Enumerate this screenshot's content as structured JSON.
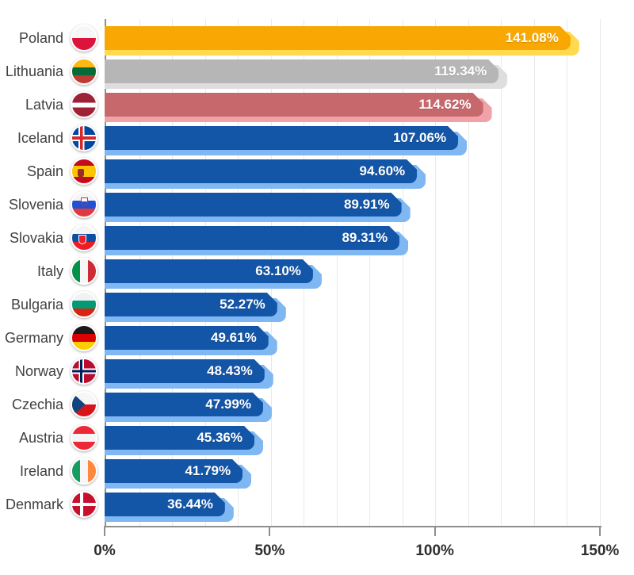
{
  "chart_data": {
    "type": "bar",
    "orientation": "horizontal",
    "title": "",
    "xlabel": "",
    "ylabel": "",
    "xlim": [
      0,
      150
    ],
    "x_tick_labels": [
      "0%",
      "50%",
      "100%",
      "150%"
    ],
    "x_tick_values": [
      0,
      50,
      100,
      150
    ],
    "gridline_step": 10,
    "grid": true,
    "legend": false,
    "categories": [
      "Poland",
      "Lithuania",
      "Latvia",
      "Iceland",
      "Spain",
      "Slovenia",
      "Slovakia",
      "Italy",
      "Bulgaria",
      "Germany",
      "Norway",
      "Czechia",
      "Austria",
      "Ireland",
      "Denmark"
    ],
    "values": [
      141.08,
      119.34,
      114.62,
      107.06,
      94.6,
      89.91,
      89.31,
      63.1,
      52.27,
      49.61,
      48.43,
      47.99,
      45.36,
      41.79,
      36.44
    ],
    "value_labels": [
      "141.08%",
      "119.34%",
      "114.62%",
      "107.06%",
      "94.60%",
      "89.91%",
      "89.31%",
      "63.10%",
      "52.27%",
      "49.61%",
      "48.43%",
      "47.99%",
      "45.36%",
      "41.79%",
      "36.44%"
    ]
  },
  "axis": {
    "max": 150,
    "grid_step": 10,
    "ticks": [
      {
        "label": "0%",
        "value": 0
      },
      {
        "label": "50%",
        "value": 50
      },
      {
        "label": "100%",
        "value": 100
      },
      {
        "label": "150%",
        "value": 150
      }
    ]
  },
  "colors": {
    "gold": {
      "main": "#F8A703",
      "shade": "#FFD94E"
    },
    "silver": {
      "main": "#B6B6B6",
      "shade": "#DEDEDE"
    },
    "bronze": {
      "main": "#C7686D",
      "shade": "#EFA3A8"
    },
    "blue": {
      "main": "#1355A6",
      "shade": "#7FB7F2"
    }
  },
  "rows": [
    {
      "country": "Poland",
      "value": 141.08,
      "value_label": "141.08%",
      "color": "gold",
      "flag": "poland"
    },
    {
      "country": "Lithuania",
      "value": 119.34,
      "value_label": "119.34%",
      "color": "silver",
      "flag": "lithuania"
    },
    {
      "country": "Latvia",
      "value": 114.62,
      "value_label": "114.62%",
      "color": "bronze",
      "flag": "latvia"
    },
    {
      "country": "Iceland",
      "value": 107.06,
      "value_label": "107.06%",
      "color": "blue",
      "flag": "iceland"
    },
    {
      "country": "Spain",
      "value": 94.6,
      "value_label": "94.60%",
      "color": "blue",
      "flag": "spain"
    },
    {
      "country": "Slovenia",
      "value": 89.91,
      "value_label": "89.91%",
      "color": "blue",
      "flag": "slovenia"
    },
    {
      "country": "Slovakia",
      "value": 89.31,
      "value_label": "89.31%",
      "color": "blue",
      "flag": "slovakia"
    },
    {
      "country": "Italy",
      "value": 63.1,
      "value_label": "63.10%",
      "color": "blue",
      "flag": "italy"
    },
    {
      "country": "Bulgaria",
      "value": 52.27,
      "value_label": "52.27%",
      "color": "blue",
      "flag": "bulgaria"
    },
    {
      "country": "Germany",
      "value": 49.61,
      "value_label": "49.61%",
      "color": "blue",
      "flag": "germany"
    },
    {
      "country": "Norway",
      "value": 48.43,
      "value_label": "48.43%",
      "color": "blue",
      "flag": "norway"
    },
    {
      "country": "Czechia",
      "value": 47.99,
      "value_label": "47.99%",
      "color": "blue",
      "flag": "czechia"
    },
    {
      "country": "Austria",
      "value": 45.36,
      "value_label": "45.36%",
      "color": "blue",
      "flag": "austria"
    },
    {
      "country": "Ireland",
      "value": 41.79,
      "value_label": "41.79%",
      "color": "blue",
      "flag": "ireland"
    },
    {
      "country": "Denmark",
      "value": 36.44,
      "value_label": "36.44%",
      "color": "blue",
      "flag": "denmark"
    }
  ]
}
